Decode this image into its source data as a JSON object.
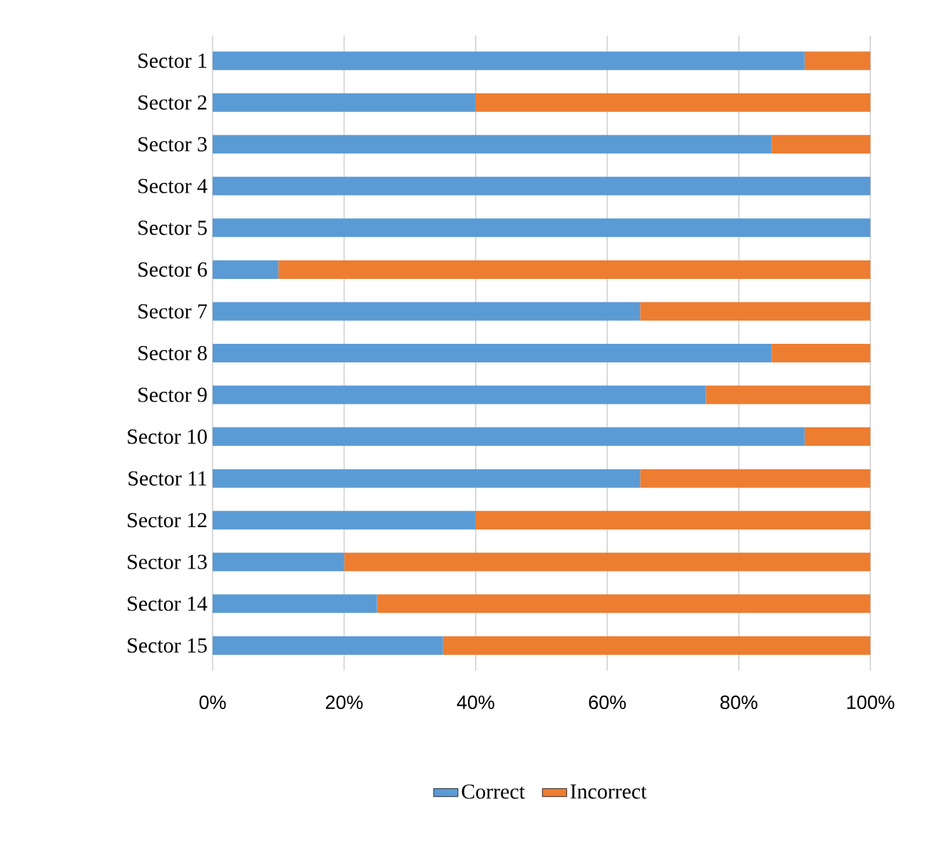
{
  "chart_data": {
    "type": "bar",
    "orientation": "horizontal",
    "stacked": true,
    "categories": [
      "Sector 1",
      "Sector 2",
      "Sector 3",
      "Sector 4",
      "Sector 5",
      "Sector 6",
      "Sector 7",
      "Sector 8",
      "Sector 9",
      "Sector 10",
      "Sector 11",
      "Sector 12",
      "Sector 13",
      "Sector 14",
      "Sector 15"
    ],
    "series": [
      {
        "name": "Correct",
        "color": "#5b9bd5",
        "values": [
          90,
          40,
          85,
          100,
          100,
          10,
          65,
          85,
          75,
          90,
          65,
          40,
          20,
          25,
          35
        ]
      },
      {
        "name": "Incorrect",
        "color": "#ed7d31",
        "values": [
          10,
          60,
          15,
          0,
          0,
          90,
          35,
          15,
          25,
          10,
          35,
          60,
          80,
          75,
          65
        ]
      }
    ],
    "xlim": [
      0,
      100
    ],
    "xticks": [
      {
        "value": 0,
        "label": "0%"
      },
      {
        "value": 20,
        "label": "20%"
      },
      {
        "value": 40,
        "label": "40%"
      },
      {
        "value": 60,
        "label": "60%"
      },
      {
        "value": 80,
        "label": "80%"
      },
      {
        "value": 100,
        "label": "100%"
      }
    ],
    "grid": "x",
    "legend": "bottom"
  }
}
